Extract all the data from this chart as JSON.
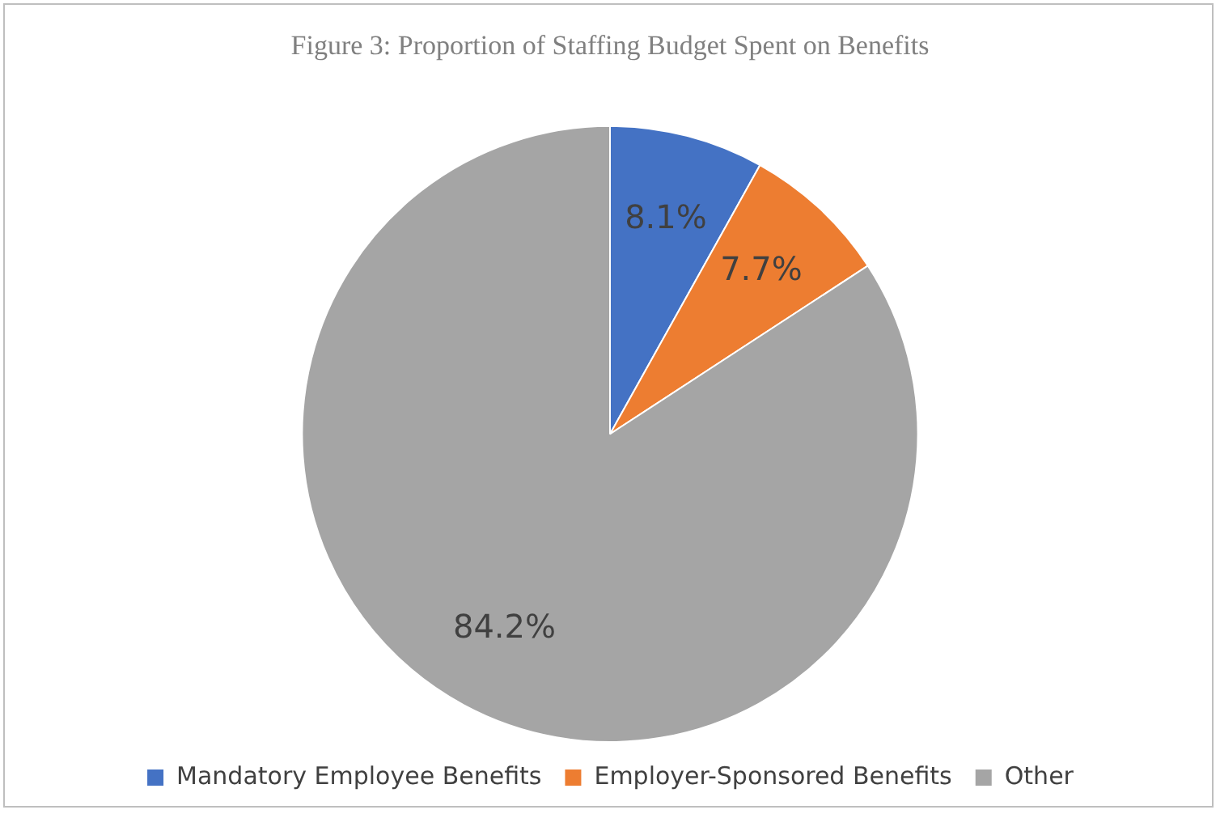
{
  "chart_data": {
    "type": "pie",
    "title": "Figure 3: Proportion of Staffing Budget Spent on Benefits",
    "categories": [
      "Mandatory Employee Benefits",
      "Employer-Sponsored Benefits",
      "Other"
    ],
    "values": [
      8.1,
      7.7,
      84.2
    ],
    "colors": [
      "#4472c4",
      "#ed7d31",
      "#a5a5a5"
    ],
    "value_labels": [
      "8.1%",
      "7.7%",
      "84.2%"
    ],
    "legend": "bottom"
  }
}
